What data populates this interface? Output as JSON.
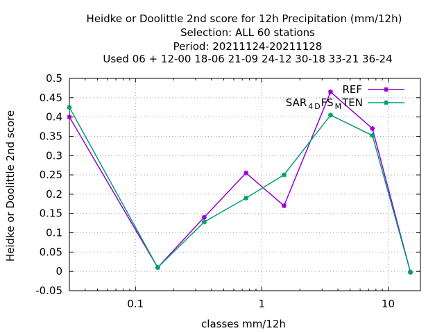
{
  "chart_data": {
    "type": "line",
    "title_lines": [
      "Heidke or Doolittle 2nd score  for 12h Precipitation (mm/12h)",
      "Selection: ALL     60 stations",
      "Period: 20211124-20211128",
      "Used  06  + 12-00 18-06 21-09 24-12 30-18 33-21 36-24"
    ],
    "xlabel": "classes mm/12h",
    "ylabel": "Heidke or Doolittle 2nd score",
    "x_scale": "log",
    "xlim": [
      0.03,
      18
    ],
    "ylim": [
      -0.05,
      0.5
    ],
    "x_ticks": [
      0.1,
      1,
      10
    ],
    "x_tick_labels": [
      "0.1",
      "1",
      "10"
    ],
    "y_ticks": [
      -0.05,
      0,
      0.05,
      0.1,
      0.15,
      0.2,
      0.25,
      0.3,
      0.35,
      0.4,
      0.45,
      0.5
    ],
    "y_tick_labels": [
      "-0.05",
      "0",
      "0.05",
      "0.1",
      "0.15",
      "0.2",
      "0.25",
      "0.3",
      "0.35",
      "0.4",
      "0.45",
      "0.5"
    ],
    "grid": true,
    "legend_position": "top-right",
    "series": [
      {
        "name": "REF",
        "color": "#9400d3",
        "x": [
          0.03,
          0.15,
          0.35,
          0.75,
          1.5,
          3.5,
          7.5,
          15
        ],
        "y": [
          0.4,
          0.01,
          0.14,
          0.255,
          0.17,
          0.465,
          0.37,
          -0.002
        ]
      },
      {
        "name": "SAR_4D_FS_M_TEN",
        "legend_parts": [
          {
            "text": "SAR",
            "sub": false
          },
          {
            "text": "4",
            "sub": true
          },
          {
            "text": "D",
            "sub": true
          },
          {
            "text": "FS",
            "sub": false
          },
          {
            "text": "M",
            "sub": true
          },
          {
            "text": "TEN",
            "sub": false
          }
        ],
        "color": "#009e73",
        "x": [
          0.03,
          0.15,
          0.35,
          0.75,
          1.5,
          3.5,
          7.5,
          15
        ],
        "y": [
          0.425,
          0.01,
          0.128,
          0.19,
          0.25,
          0.405,
          0.352,
          -0.002
        ]
      }
    ]
  }
}
